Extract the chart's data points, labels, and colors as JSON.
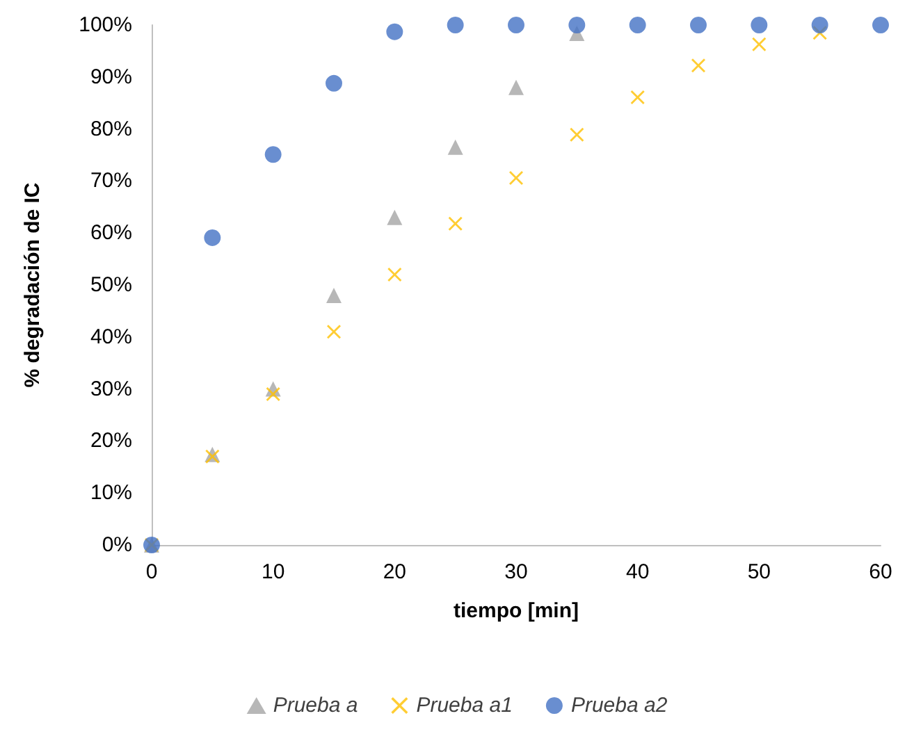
{
  "chart_data": {
    "type": "scatter",
    "xlabel": "tiempo [min]",
    "ylabel": "% degradación de IC",
    "x": [
      0,
      5,
      10,
      15,
      20,
      25,
      30,
      35,
      40,
      45,
      50,
      55,
      60
    ],
    "series": [
      {
        "name": "Prueba a",
        "color": "#a5a5a5",
        "marker": "triangle",
        "values": [
          0,
          17.4,
          30,
          48,
          63,
          76.5,
          88,
          98.4,
          null,
          null,
          null,
          null,
          null
        ]
      },
      {
        "name": "Prueba a1",
        "color": "#ffc000",
        "marker": "cross",
        "values": [
          0,
          17,
          29,
          41,
          52,
          61.8,
          70.6,
          78.9,
          86.1,
          92.2,
          96.3,
          98.5,
          null
        ]
      },
      {
        "name": "Prueba a2",
        "color": "#4472c4",
        "marker": "circle",
        "values": [
          0,
          59.1,
          75.1,
          88.8,
          98.7,
          100,
          100,
          100,
          100,
          100,
          100,
          100,
          100
        ]
      }
    ],
    "xlim": [
      0,
      60
    ],
    "xticks": [
      0,
      10,
      20,
      30,
      40,
      50,
      60
    ],
    "ylim": [
      0,
      100
    ],
    "yticks": [
      {
        "value": 0,
        "label": "0%"
      },
      {
        "value": 10,
        "label": "10%"
      },
      {
        "value": 20,
        "label": "20%"
      },
      {
        "value": 30,
        "label": "30%"
      },
      {
        "value": 40,
        "label": "40%"
      },
      {
        "value": 50,
        "label": "50%"
      },
      {
        "value": 60,
        "label": "60%"
      },
      {
        "value": 70,
        "label": "70%"
      },
      {
        "value": 80,
        "label": "80%"
      },
      {
        "value": 90,
        "label": "90%"
      },
      {
        "value": 100,
        "label": "100%"
      }
    ],
    "grid": false,
    "legend": "bottom"
  }
}
